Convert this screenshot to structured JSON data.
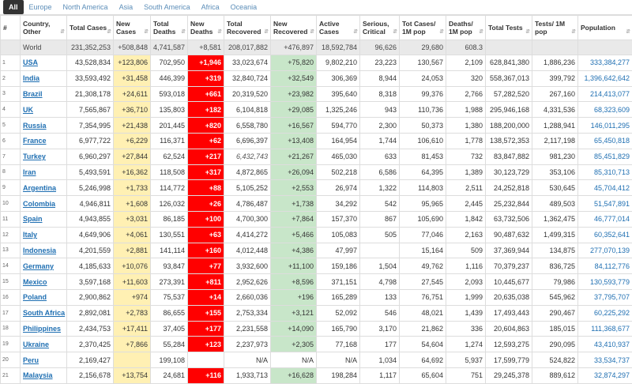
{
  "tabs": [
    "All",
    "Europe",
    "North America",
    "Asia",
    "South America",
    "Africa",
    "Oceania"
  ],
  "headers": [
    "#",
    "Country, Other",
    "Total Cases",
    "New Cases",
    "Total Deaths",
    "New Deaths",
    "Total Recovered",
    "New Recovered",
    "Active Cases",
    "Serious, Critical",
    "Tot Cases/ 1M pop",
    "Deaths/ 1M pop",
    "Total Tests",
    "Tests/ 1M pop",
    "Population"
  ],
  "world": [
    "",
    "World",
    "231,352,253",
    "+508,848",
    "4,741,587",
    "+8,581",
    "208,017,882",
    "+476,897",
    "18,592,784",
    "96,626",
    "29,680",
    "608.3",
    "",
    "",
    ""
  ],
  "rows": [
    [
      "1",
      "USA",
      "43,528,834",
      "+123,806",
      "702,950",
      "+1,946",
      "33,023,674",
      "+75,820",
      "9,802,210",
      "23,223",
      "130,567",
      "2,109",
      "628,841,380",
      "1,886,236",
      "333,384,277"
    ],
    [
      "2",
      "India",
      "33,593,492",
      "+31,458",
      "446,399",
      "+319",
      "32,840,724",
      "+32,549",
      "306,369",
      "8,944",
      "24,053",
      "320",
      "558,367,013",
      "399,792",
      "1,396,642,642"
    ],
    [
      "3",
      "Brazil",
      "21,308,178",
      "+24,611",
      "593,018",
      "+661",
      "20,319,520",
      "+23,982",
      "395,640",
      "8,318",
      "99,376",
      "2,766",
      "57,282,520",
      "267,160",
      "214,413,077"
    ],
    [
      "4",
      "UK",
      "7,565,867",
      "+36,710",
      "135,803",
      "+182",
      "6,104,818",
      "+29,085",
      "1,325,246",
      "943",
      "110,736",
      "1,988",
      "295,946,168",
      "4,331,536",
      "68,323,609"
    ],
    [
      "5",
      "Russia",
      "7,354,995",
      "+21,438",
      "201,445",
      "+820",
      "6,558,780",
      "+16,567",
      "594,770",
      "2,300",
      "50,373",
      "1,380",
      "188,200,000",
      "1,288,941",
      "146,011,295"
    ],
    [
      "6",
      "France",
      "6,977,722",
      "+6,229",
      "116,371",
      "+62",
      "6,696,397",
      "+13,408",
      "164,954",
      "1,744",
      "106,610",
      "1,778",
      "138,572,353",
      "2,117,198",
      "65,450,818"
    ],
    [
      "7",
      "Turkey",
      "6,960,297",
      "+27,844",
      "62,524",
      "+217",
      "6,432,743",
      "+21,267",
      "465,030",
      "633",
      "81,453",
      "732",
      "83,847,882",
      "981,230",
      "85,451,829"
    ],
    [
      "8",
      "Iran",
      "5,493,591",
      "+16,362",
      "118,508",
      "+317",
      "4,872,865",
      "+26,094",
      "502,218",
      "6,586",
      "64,395",
      "1,389",
      "30,123,729",
      "353,106",
      "85,310,713"
    ],
    [
      "9",
      "Argentina",
      "5,246,998",
      "+1,733",
      "114,772",
      "+88",
      "5,105,252",
      "+2,553",
      "26,974",
      "1,322",
      "114,803",
      "2,511",
      "24,252,818",
      "530,645",
      "45,704,412"
    ],
    [
      "10",
      "Colombia",
      "4,946,811",
      "+1,608",
      "126,032",
      "+26",
      "4,786,487",
      "+1,738",
      "34,292",
      "542",
      "95,965",
      "2,445",
      "25,232,844",
      "489,503",
      "51,547,891"
    ],
    [
      "11",
      "Spain",
      "4,943,855",
      "+3,031",
      "86,185",
      "+100",
      "4,700,300",
      "+7,864",
      "157,370",
      "867",
      "105,690",
      "1,842",
      "63,732,506",
      "1,362,475",
      "46,777,014"
    ],
    [
      "12",
      "Italy",
      "4,649,906",
      "+4,061",
      "130,551",
      "+63",
      "4,414,272",
      "+5,466",
      "105,083",
      "505",
      "77,046",
      "2,163",
      "90,487,632",
      "1,499,315",
      "60,352,641"
    ],
    [
      "13",
      "Indonesia",
      "4,201,559",
      "+2,881",
      "141,114",
      "+160",
      "4,012,448",
      "+4,386",
      "47,997",
      "",
      "15,164",
      "509",
      "37,369,944",
      "134,875",
      "277,070,139"
    ],
    [
      "14",
      "Germany",
      "4,185,633",
      "+10,076",
      "93,847",
      "+77",
      "3,932,600",
      "+11,100",
      "159,186",
      "1,504",
      "49,762",
      "1,116",
      "70,379,237",
      "836,725",
      "84,112,776"
    ],
    [
      "15",
      "Mexico",
      "3,597,168",
      "+11,603",
      "273,391",
      "+811",
      "2,952,626",
      "+8,596",
      "371,151",
      "4,798",
      "27,545",
      "2,093",
      "10,445,677",
      "79,986",
      "130,593,779"
    ],
    [
      "16",
      "Poland",
      "2,900,862",
      "+974",
      "75,537",
      "+14",
      "2,660,036",
      "+196",
      "165,289",
      "133",
      "76,751",
      "1,999",
      "20,635,038",
      "545,962",
      "37,795,707"
    ],
    [
      "17",
      "South Africa",
      "2,892,081",
      "+2,783",
      "86,655",
      "+155",
      "2,753,334",
      "+3,121",
      "52,092",
      "546",
      "48,021",
      "1,439",
      "17,493,443",
      "290,467",
      "60,225,292"
    ],
    [
      "18",
      "Philippines",
      "2,434,753",
      "+17,411",
      "37,405",
      "+177",
      "2,231,558",
      "+14,090",
      "165,790",
      "3,170",
      "21,862",
      "336",
      "20,604,863",
      "185,015",
      "111,368,677"
    ],
    [
      "19",
      "Ukraine",
      "2,370,425",
      "+7,866",
      "55,284",
      "+123",
      "2,237,973",
      "+2,305",
      "77,168",
      "177",
      "54,604",
      "1,274",
      "12,593,275",
      "290,095",
      "43,410,937"
    ],
    [
      "20",
      "Peru",
      "2,169,427",
      "",
      "199,108",
      "",
      "N/A",
      "N/A",
      "N/A",
      "1,034",
      "64,692",
      "5,937",
      "17,599,779",
      "524,822",
      "33,534,737"
    ],
    [
      "21",
      "Malaysia",
      "2,156,678",
      "+13,754",
      "24,681",
      "+116",
      "1,933,713",
      "+16,628",
      "198,284",
      "1,117",
      "65,604",
      "751",
      "29,245,378",
      "889,612",
      "32,874,297"
    ]
  ],
  "italic_cells": [
    "6-6"
  ],
  "colors": {
    "link": "#1f6fb2",
    "new_cases_bg": "#fff0b3",
    "new_deaths_bg": "#ff0000",
    "new_recovered_bg": "#c8e6c9",
    "world_bg": "#e9e9e9"
  },
  "icons": {
    "sort": "sort-arrows-icon"
  }
}
